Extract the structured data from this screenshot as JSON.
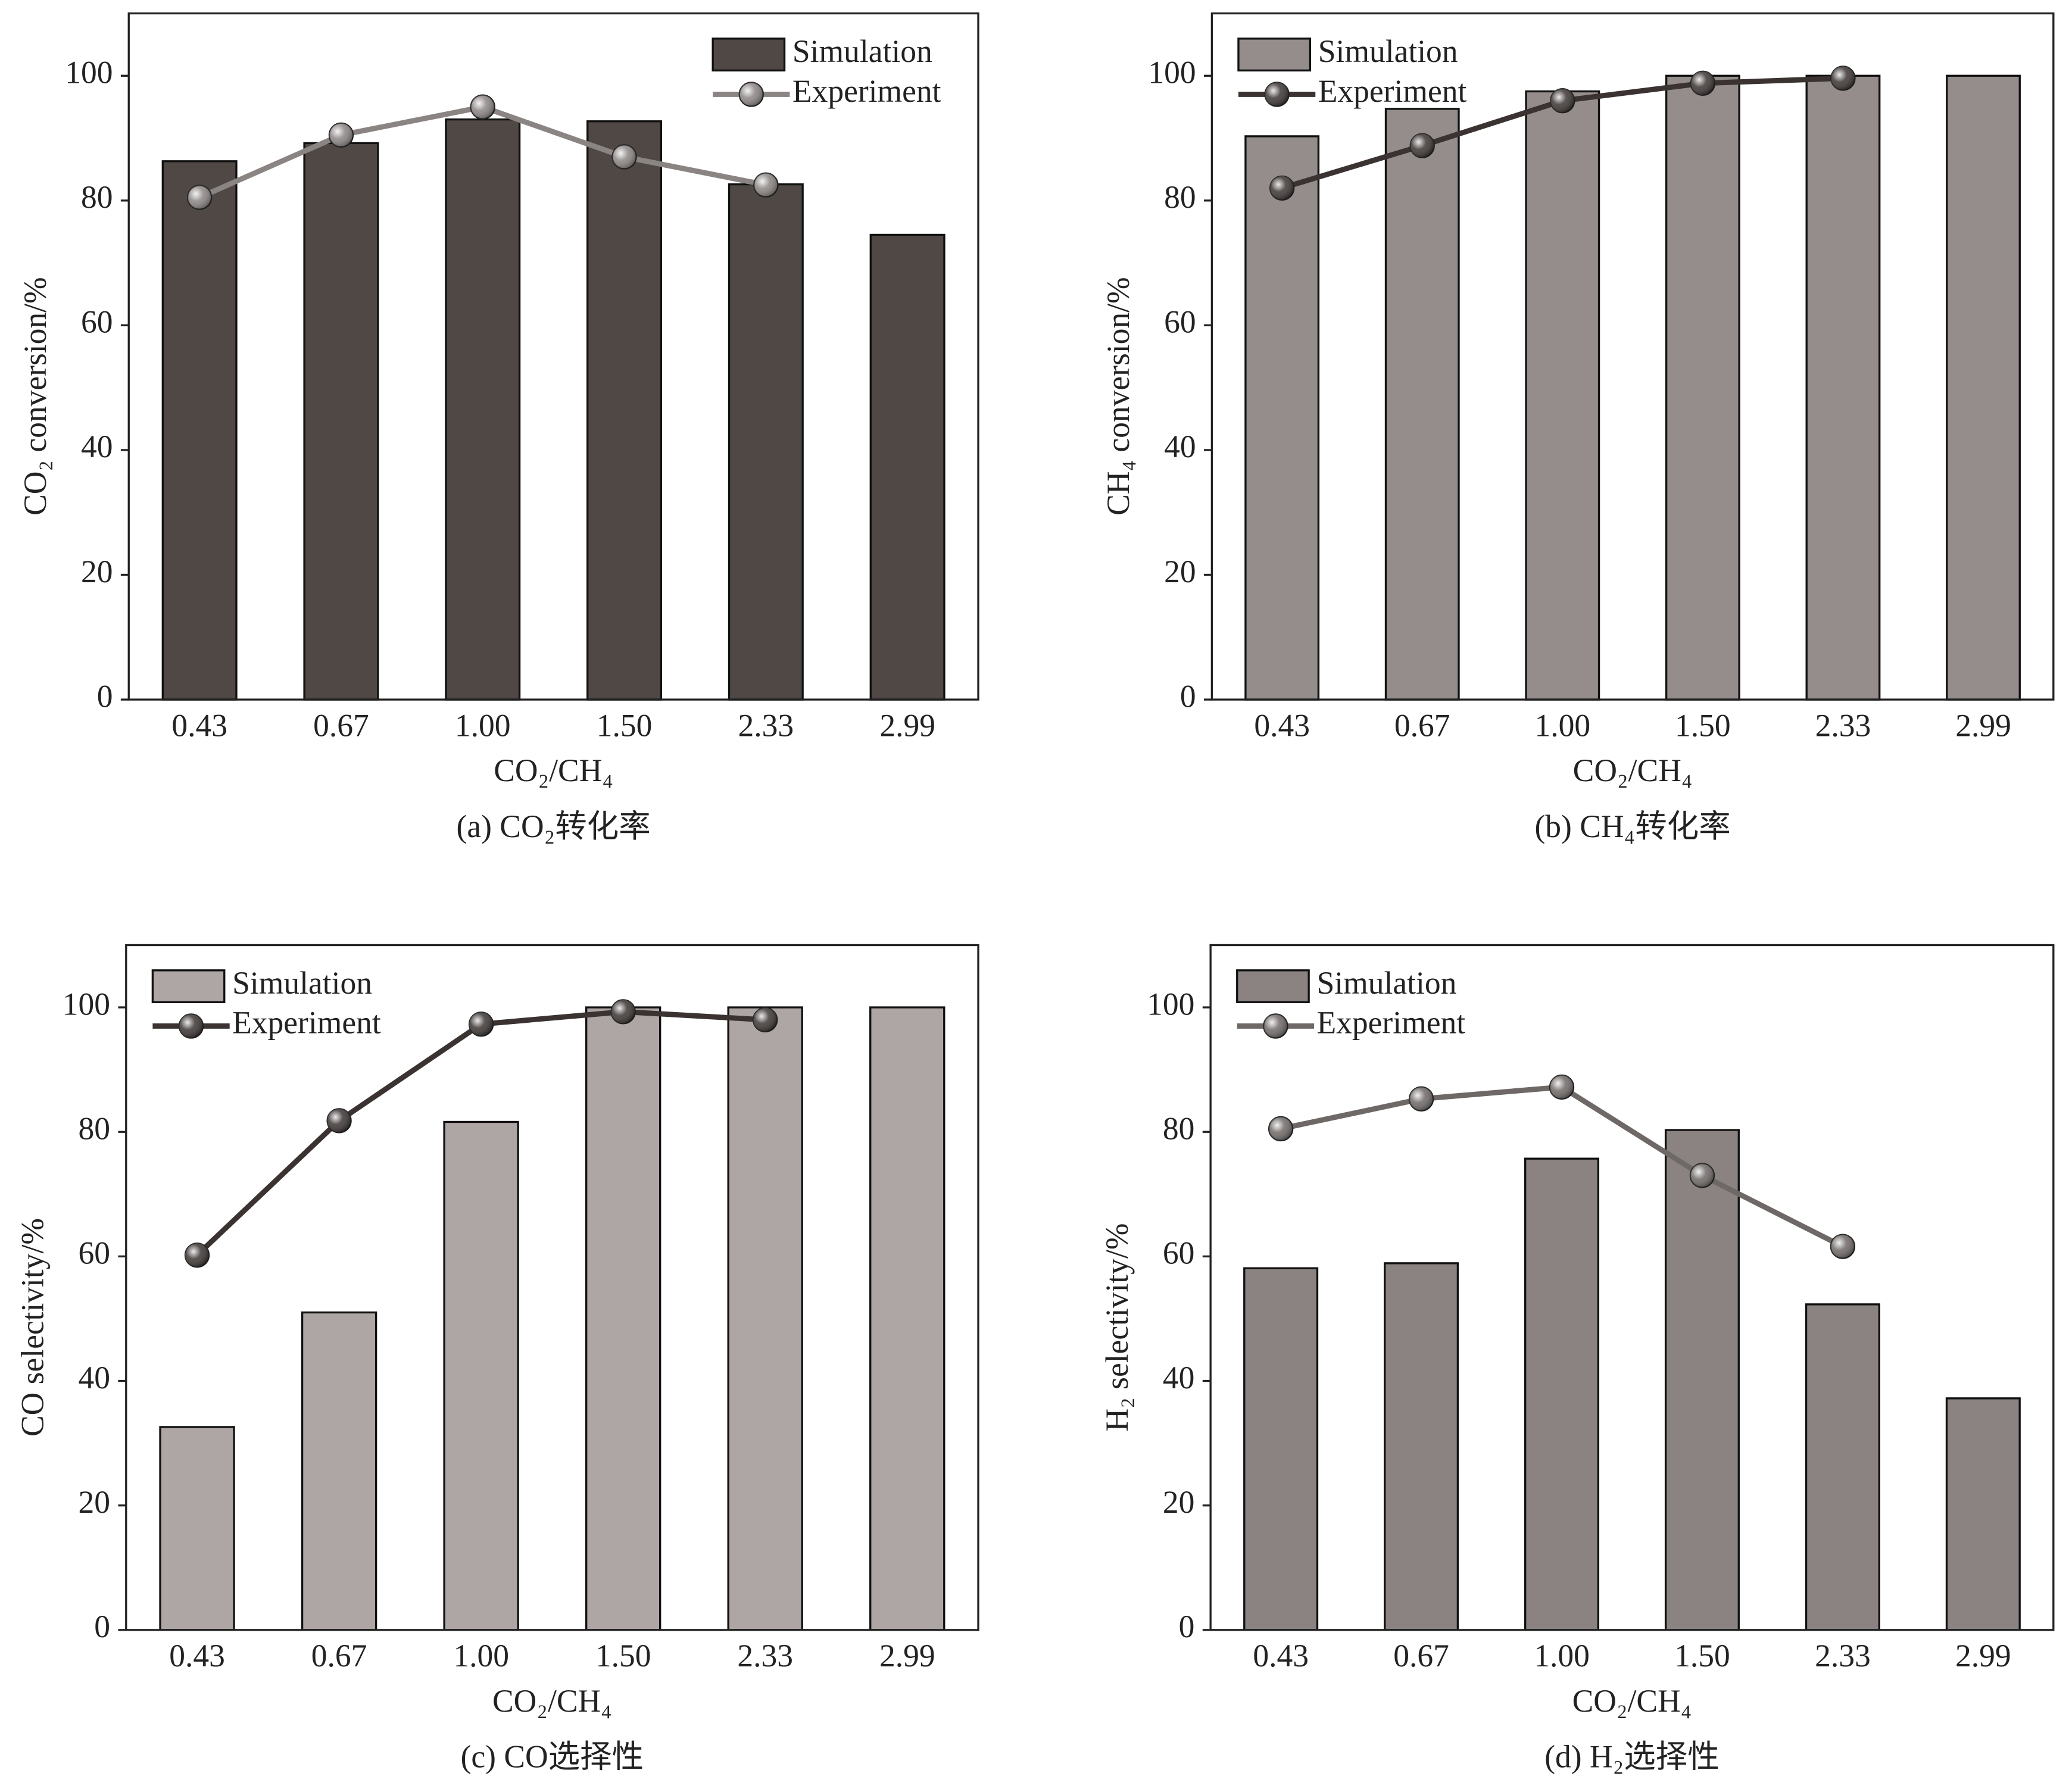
{
  "chart_data": [
    {
      "type": "bar",
      "title": "(a) CO₂转化率",
      "xlabel": "CO₂/CH₄",
      "ylabel": "CO₂ conversion/%",
      "categories": [
        "0.43",
        "0.67",
        "1.00",
        "1.50",
        "2.33",
        "2.99"
      ],
      "series": [
        {
          "name": "Simulation",
          "type": "bar",
          "color": "#4f4844",
          "values": [
            86.3,
            89.2,
            93.0,
            92.7,
            82.6,
            74.5
          ]
        },
        {
          "name": "Experiment",
          "type": "line",
          "color": "#8a8482",
          "values": [
            80.5,
            90.5,
            95.0,
            87.0,
            82.5,
            null
          ]
        }
      ],
      "ylim": [
        0,
        110
      ],
      "yticks": [
        0,
        20,
        40,
        60,
        80,
        100
      ],
      "legend": "upper right"
    },
    {
      "type": "bar",
      "title": "(b) CH₄转化率",
      "xlabel": "CO₂/CH₄",
      "ylabel": "CH₄ conversion/%",
      "categories": [
        "0.43",
        "0.67",
        "1.00",
        "1.50",
        "2.33",
        "2.99"
      ],
      "series": [
        {
          "name": "Simulation",
          "type": "bar",
          "color": "#958d8b",
          "values": [
            90.3,
            94.7,
            97.5,
            100.0,
            100.0,
            100.0
          ]
        },
        {
          "name": "Experiment",
          "type": "line",
          "color": "#3a3331",
          "values": [
            82.0,
            88.8,
            96.0,
            98.8,
            99.6,
            null
          ]
        }
      ],
      "ylim": [
        0,
        110
      ],
      "yticks": [
        0,
        20,
        40,
        60,
        80,
        100
      ],
      "legend": "upper left"
    },
    {
      "type": "bar",
      "title": "(c) CO选择性",
      "xlabel": "CO₂/CH₄",
      "ylabel": "CO selectivity/%",
      "categories": [
        "0.43",
        "0.67",
        "1.00",
        "1.50",
        "2.33",
        "2.99"
      ],
      "series": [
        {
          "name": "Simulation",
          "type": "bar",
          "color": "#aea6a4",
          "values": [
            32.6,
            51.0,
            81.6,
            100.0,
            100.0,
            100.0
          ]
        },
        {
          "name": "Experiment",
          "type": "line",
          "color": "#3a3331",
          "values": [
            60.2,
            81.8,
            97.3,
            99.3,
            98.0,
            null
          ]
        }
      ],
      "ylim": [
        0,
        110
      ],
      "yticks": [
        0,
        20,
        40,
        60,
        80,
        100
      ],
      "legend": "upper left"
    },
    {
      "type": "bar",
      "title": "(d) H₂选择性",
      "xlabel": "CO₂/CH₄",
      "ylabel": "H₂ selectivity/%",
      "categories": [
        "0.43",
        "0.67",
        "1.00",
        "1.50",
        "2.33",
        "2.99"
      ],
      "series": [
        {
          "name": "Simulation",
          "type": "bar",
          "color": "#8b8381",
          "values": [
            58.1,
            58.9,
            75.7,
            80.3,
            52.3,
            37.2
          ]
        },
        {
          "name": "Experiment",
          "type": "line",
          "color": "#6e6866",
          "values": [
            80.5,
            85.3,
            87.2,
            73.0,
            61.6,
            null
          ]
        }
      ],
      "ylim": [
        0,
        110
      ],
      "yticks": [
        0,
        20,
        40,
        60,
        80,
        100
      ],
      "legend": "upper left"
    }
  ]
}
